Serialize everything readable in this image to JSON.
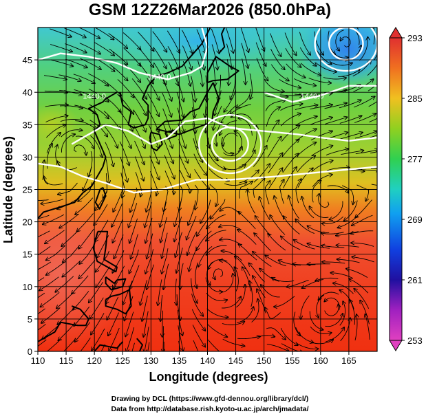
{
  "title": "GSM 12Z26Mar2026 (850.0hPa)",
  "x_axis": {
    "label": "Longitude (degrees)",
    "min": 110,
    "max": 170,
    "ticks": [
      "110",
      "115",
      "120",
      "125",
      "130",
      "135",
      "140",
      "145",
      "150",
      "155",
      "160",
      "165"
    ]
  },
  "y_axis": {
    "label": "Latitude  (degrees)",
    "min": 0,
    "max": 50,
    "ticks": [
      "0",
      "5",
      "10",
      "15",
      "20",
      "25",
      "30",
      "35",
      "40",
      "45"
    ]
  },
  "colorbar": {
    "min": 253,
    "max": 293,
    "ticks": [
      "253",
      "261",
      "269",
      "277",
      "285",
      "293"
    ],
    "colors": [
      "#e040c0",
      "#9020c0",
      "#1010a0",
      "#1030e0",
      "#1090f0",
      "#20d0e0",
      "#20d080",
      "#40c020",
      "#a0d020",
      "#f0d020",
      "#f09020",
      "#f04020",
      "#e03030"
    ]
  },
  "contours": {
    "labels": [
      {
        "text": "1440.0",
        "lon": 131.5,
        "lat": 42.0
      },
      {
        "text": "1440.0",
        "lon": 158.5,
        "lat": 39.0
      },
      {
        "text": "1440.0",
        "lon": 120.0,
        "lat": 39.0
      }
    ]
  },
  "vortices": [
    {
      "lon": 144.0,
      "lat": 32.0,
      "type": "cyclone"
    },
    {
      "lon": 164.5,
      "lat": 47.5,
      "type": "cyclone"
    },
    {
      "lon": 117.0,
      "lat": 31.0,
      "type": "anticyclone"
    },
    {
      "lon": 142.0,
      "lat": 12.0,
      "type": "cyclone"
    },
    {
      "lon": 162.0,
      "lat": 7.0,
      "type": "cyclone"
    },
    {
      "lon": 161.0,
      "lat": 23.0,
      "type": "anticyclone"
    }
  ],
  "credits": [
    "Drawing by DCL (https://www.gfd-dennou.org/library/dcl/)",
    "Data from http://database.rish.kyoto-u.ac.jp/arch/jmadata/"
  ]
}
